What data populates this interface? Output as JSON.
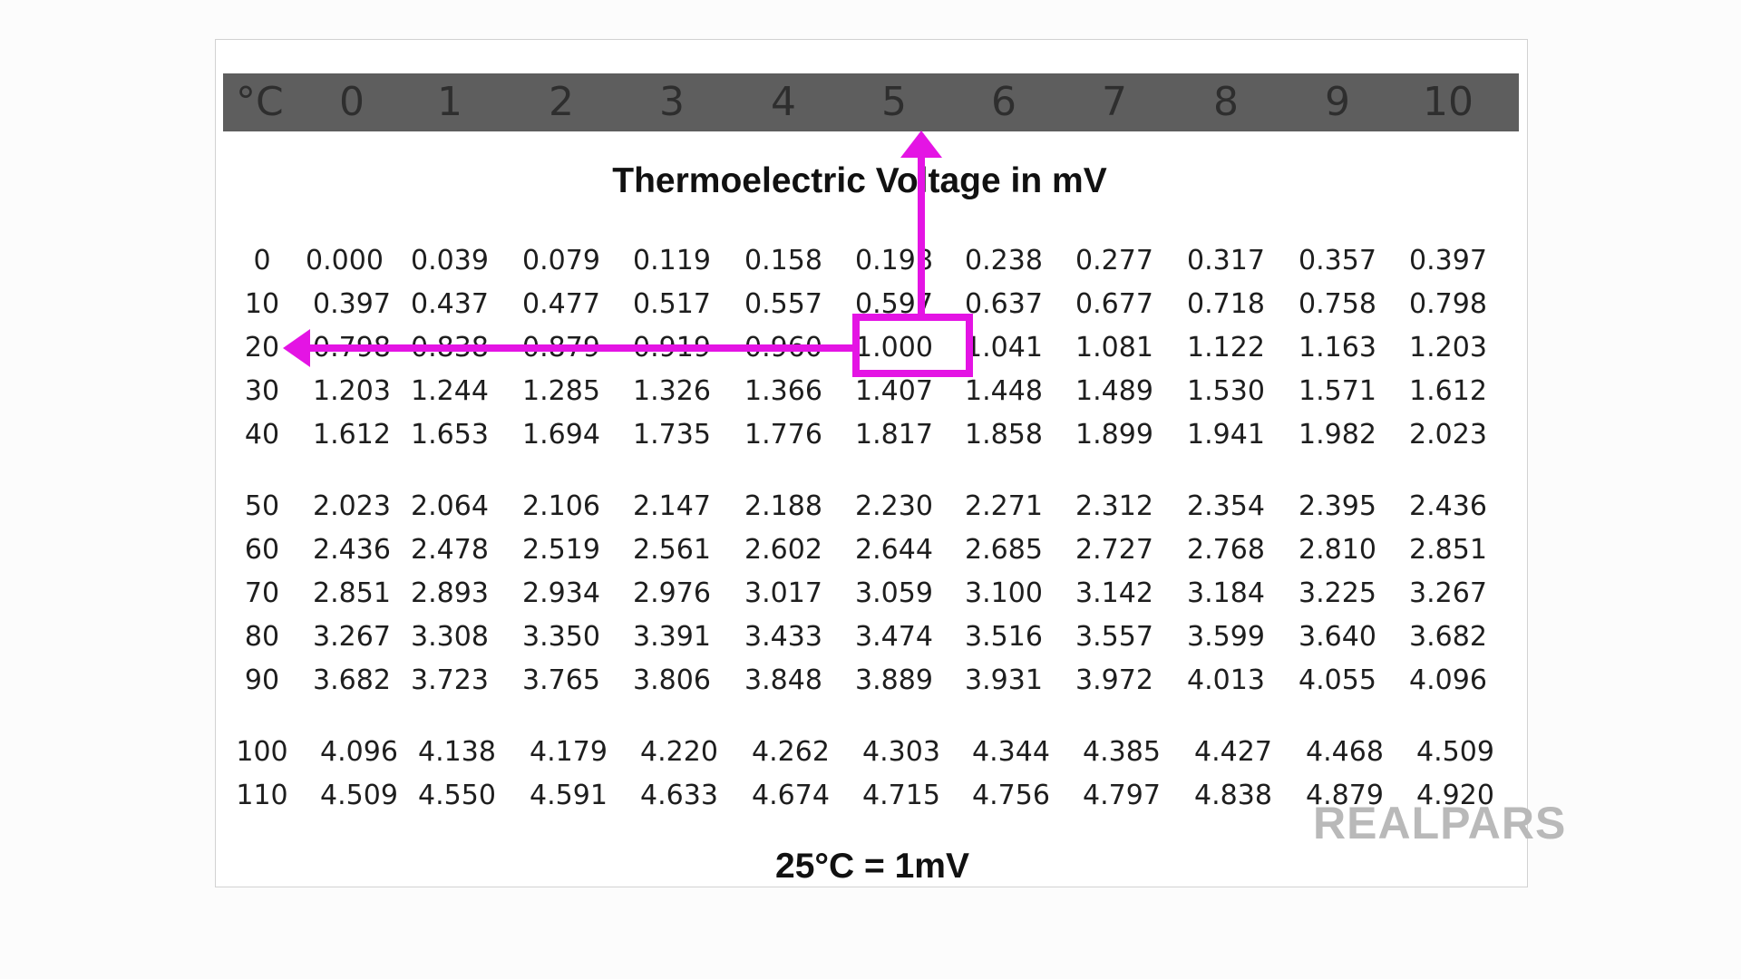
{
  "table": {
    "unit_header": "°C",
    "column_headers": [
      "0",
      "1",
      "2",
      "3",
      "4",
      "5",
      "6",
      "7",
      "8",
      "9",
      "10"
    ],
    "title": "Thermoelectric Voltage in mV",
    "rows": [
      {
        "label": "0",
        "values": [
          "0.000",
          "0.039",
          "0.079",
          "0.119",
          "0.158",
          "0.198",
          "0.238",
          "0.277",
          "0.317",
          "0.357",
          "0.397"
        ]
      },
      {
        "label": "10",
        "values": [
          "0.397",
          "0.437",
          "0.477",
          "0.517",
          "0.557",
          "0.597",
          "0.637",
          "0.677",
          "0.718",
          "0.758",
          "0.798"
        ]
      },
      {
        "label": "20",
        "values": [
          "0.798",
          "0.838",
          "0.879",
          "0.919",
          "0.960",
          "1.000",
          "1.041",
          "1.081",
          "1.122",
          "1.163",
          "1.203"
        ]
      },
      {
        "label": "30",
        "values": [
          "1.203",
          "1.244",
          "1.285",
          "1.326",
          "1.366",
          "1.407",
          "1.448",
          "1.489",
          "1.530",
          "1.571",
          "1.612"
        ]
      },
      {
        "label": "40",
        "values": [
          "1.612",
          "1.653",
          "1.694",
          "1.735",
          "1.776",
          "1.817",
          "1.858",
          "1.899",
          "1.941",
          "1.982",
          "2.023"
        ]
      },
      {
        "label": "50",
        "values": [
          "2.023",
          "2.064",
          "2.106",
          "2.147",
          "2.188",
          "2.230",
          "2.271",
          "2.312",
          "2.354",
          "2.395",
          "2.436"
        ]
      },
      {
        "label": "60",
        "values": [
          "2.436",
          "2.478",
          "2.519",
          "2.561",
          "2.602",
          "2.644",
          "2.685",
          "2.727",
          "2.768",
          "2.810",
          "2.851"
        ]
      },
      {
        "label": "70",
        "values": [
          "2.851",
          "2.893",
          "2.934",
          "2.976",
          "3.017",
          "3.059",
          "3.100",
          "3.142",
          "3.184",
          "3.225",
          "3.267"
        ]
      },
      {
        "label": "80",
        "values": [
          "3.267",
          "3.308",
          "3.350",
          "3.391",
          "3.433",
          "3.474",
          "3.516",
          "3.557",
          "3.599",
          "3.640",
          "3.682"
        ]
      },
      {
        "label": "90",
        "values": [
          "3.682",
          "3.723",
          "3.765",
          "3.806",
          "3.848",
          "3.889",
          "3.931",
          "3.972",
          "4.013",
          "4.055",
          "4.096"
        ]
      },
      {
        "label": "100",
        "values": [
          "4.096",
          "4.138",
          "4.179",
          "4.220",
          "4.262",
          "4.303",
          "4.344",
          "4.385",
          "4.427",
          "4.468",
          "4.509"
        ]
      },
      {
        "label": "110",
        "values": [
          "4.509",
          "4.550",
          "4.591",
          "4.633",
          "4.674",
          "4.715",
          "4.756",
          "4.797",
          "4.838",
          "4.879",
          "4.920"
        ]
      }
    ],
    "highlight": {
      "row_index": 2,
      "column_index": 5,
      "value": "1.000",
      "color": "#e414e4"
    }
  },
  "footer": {
    "note": "25°C = 1mV"
  },
  "brand": {
    "logo_text": "REALPARS"
  }
}
